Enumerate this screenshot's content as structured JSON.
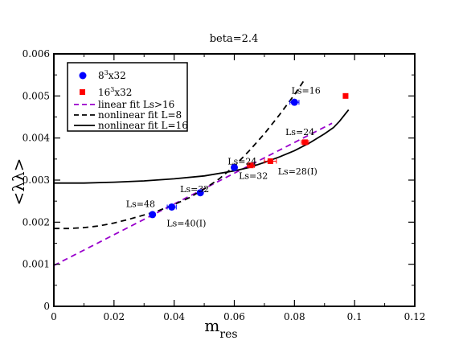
{
  "chart_data": {
    "type": "scatter",
    "title": "beta=2.4",
    "xlabel": "m",
    "xlabel_sub": "res",
    "ylabel": "<λλ>",
    "xlim": [
      0,
      0.12
    ],
    "ylim": [
      0,
      0.006
    ],
    "x_ticks": [
      "0",
      "0.02",
      "0.04",
      "0.06",
      "0.08",
      "0.1",
      "0.12"
    ],
    "y_ticks": [
      "0",
      "0.001",
      "0.002",
      "0.003",
      "0.004",
      "0.005",
      "0.006"
    ],
    "grid": false,
    "legend_position": "top-left",
    "series": [
      {
        "name": "8^3x32",
        "legend_base": "8",
        "legend_sup": "3",
        "legend_rest": "x32",
        "marker": "circle",
        "color": "#0000ff",
        "points": [
          {
            "x": 0.0328,
            "y": 0.00218,
            "xerr": 0.0004
          },
          {
            "x": 0.0392,
            "y": 0.00236,
            "xerr": 0.0015
          },
          {
            "x": 0.0487,
            "y": 0.0027,
            "xerr": 0.0005
          },
          {
            "x": 0.06,
            "y": 0.0033,
            "xerr": 0.0006
          },
          {
            "x": 0.08,
            "y": 0.00485,
            "xerr": 0.0015
          }
        ]
      },
      {
        "name": "16^3x32",
        "legend_base": "16",
        "legend_sup": "3",
        "legend_rest": "x32",
        "marker": "square",
        "color": "#ff0000",
        "points": [
          {
            "x": 0.0655,
            "y": 0.00335,
            "xerr": 0.0012
          },
          {
            "x": 0.072,
            "y": 0.00345,
            "xerr": 0.002
          },
          {
            "x": 0.0835,
            "y": 0.0039,
            "xerr": 0.0012
          },
          {
            "x": 0.097,
            "y": 0.005,
            "xerr": 0.0005
          }
        ]
      }
    ],
    "fits": [
      {
        "name": "linear fit Ls>16",
        "style": "dashed",
        "color": "#9900cc",
        "x": [
          0,
          0.0925
        ],
        "y": [
          0.00097,
          0.00435
        ]
      },
      {
        "name": "nonlinear fit L=8",
        "style": "dashed",
        "color": "#000000",
        "x": [
          0,
          0.005,
          0.01,
          0.015,
          0.02,
          0.025,
          0.03,
          0.035,
          0.04,
          0.045,
          0.05,
          0.055,
          0.06,
          0.065,
          0.07,
          0.075,
          0.08,
          0.083
        ],
        "y": [
          0.00185,
          0.00185,
          0.00187,
          0.00191,
          0.00198,
          0.00207,
          0.00217,
          0.00228,
          0.00242,
          0.00258,
          0.00279,
          0.00303,
          0.00333,
          0.0037,
          0.0041,
          0.00455,
          0.00503,
          0.00535
        ]
      },
      {
        "name": "nonlinear fit L=16",
        "style": "solid",
        "color": "#000000",
        "x": [
          0,
          0.01,
          0.02,
          0.03,
          0.04,
          0.05,
          0.06,
          0.065,
          0.07,
          0.075,
          0.08,
          0.085,
          0.09,
          0.093,
          0.095,
          0.097,
          0.098
        ],
        "y": [
          0.00293,
          0.00293,
          0.00295,
          0.00298,
          0.00303,
          0.0031,
          0.00322,
          0.0033,
          0.00342,
          0.00355,
          0.0037,
          0.00388,
          0.0041,
          0.00425,
          0.0044,
          0.00458,
          0.00467
        ]
      }
    ],
    "annotations": [
      {
        "text": "Ls=16",
        "x": 0.079,
        "y": 0.00505
      },
      {
        "text": "Ls=24",
        "x": 0.0578,
        "y": 0.00337
      },
      {
        "text": "Ls=32",
        "x": 0.042,
        "y": 0.00271
      },
      {
        "text": "Ls=48",
        "x": 0.024,
        "y": 0.00236
      },
      {
        "text": "Ls=40(I)",
        "x": 0.0375,
        "y": 0.0019
      },
      {
        "text": "Ls=32",
        "x": 0.0615,
        "y": 0.00303
      },
      {
        "text": "Ls=28(I)",
        "x": 0.0745,
        "y": 0.00313
      },
      {
        "text": "Ls=24",
        "x": 0.077,
        "y": 0.00407
      }
    ]
  }
}
